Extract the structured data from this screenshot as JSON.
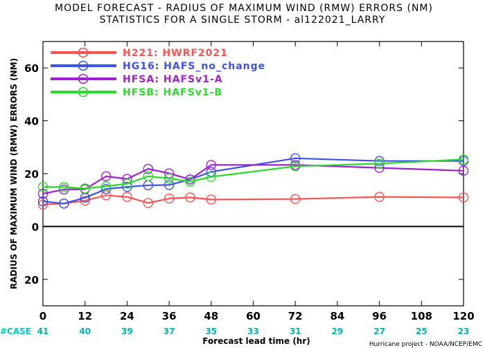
{
  "title_line1": "MODEL FORECAST - RADIUS OF MAXIMUM WIND (RMW) ERRORS (NM)",
  "title_line2": "STATISTICS FOR A SINGLE STORM - al122021_LARRY",
  "credit": "Hurricane project - NOAA/NCEP/EMC",
  "case_label": "#CASE",
  "colors": {
    "case_label": "#00c8c8",
    "case_counts": "#00b4b4",
    "zero_line": "#000000"
  },
  "chart_data": {
    "type": "line",
    "xlabel": "Forecast lead time (hr)",
    "ylabel": "RADIUS OF MAXIMUM WIND (RMW) ERRORS (NM)",
    "xlim": [
      0,
      120
    ],
    "ylim": [
      -30,
      70
    ],
    "x_ticks": [
      0,
      12,
      24,
      36,
      48,
      60,
      72,
      84,
      96,
      108,
      120
    ],
    "y_ticks": [
      -20,
      0,
      20,
      40,
      60
    ],
    "y_tick_labels": [
      "20",
      "0",
      "20",
      "40",
      "60"
    ],
    "grid": false,
    "legend_position": "top-left",
    "case_counts": [
      {
        "x": 0,
        "n": "41"
      },
      {
        "x": 12,
        "n": "40"
      },
      {
        "x": 24,
        "n": "39"
      },
      {
        "x": 36,
        "n": "37"
      },
      {
        "x": 48,
        "n": "35"
      },
      {
        "x": 60,
        "n": "33"
      },
      {
        "x": 72,
        "n": "31"
      },
      {
        "x": 84,
        "n": "29"
      },
      {
        "x": 96,
        "n": "27"
      },
      {
        "x": 108,
        "n": "25"
      },
      {
        "x": 120,
        "n": "23"
      }
    ],
    "series": [
      {
        "id": "H221",
        "name": "HWRF2021",
        "color": "#ff5050",
        "x": [
          0,
          6,
          12,
          18,
          24,
          30,
          36,
          42,
          48,
          72,
          96,
          120
        ],
        "y": [
          8.3,
          8.7,
          9.8,
          11.8,
          11.2,
          8.9,
          10.6,
          11.0,
          10.2,
          10.4,
          11.2,
          11.0
        ]
      },
      {
        "id": "HG16",
        "name": "HAFS_no_change",
        "color": "#3c50f0",
        "x": [
          0,
          6,
          12,
          18,
          24,
          30,
          36,
          42,
          48,
          72,
          96,
          120
        ],
        "y": [
          9.5,
          8.7,
          10.9,
          14.2,
          15.0,
          15.6,
          15.7,
          17.8,
          20.7,
          25.8,
          24.8,
          24.8
        ]
      },
      {
        "id": "HFSA",
        "name": "HAFSv1-A",
        "color": "#a020d0",
        "x": [
          0,
          6,
          12,
          18,
          24,
          30,
          36,
          42,
          48,
          72,
          96,
          120
        ],
        "y": [
          12.4,
          14.0,
          14.1,
          19.0,
          18.0,
          21.8,
          20.1,
          17.8,
          23.3,
          23.3,
          22.2,
          21.1
        ]
      },
      {
        "id": "HFSB",
        "name": "HAFSv1-B",
        "color": "#28dc28",
        "x": [
          0,
          6,
          12,
          18,
          24,
          30,
          36,
          42,
          48,
          72,
          96,
          120
        ],
        "y": [
          15.0,
          14.9,
          14.4,
          15.2,
          16.2,
          19.0,
          18.2,
          17.0,
          18.8,
          22.8,
          23.8,
          25.4
        ]
      }
    ]
  }
}
